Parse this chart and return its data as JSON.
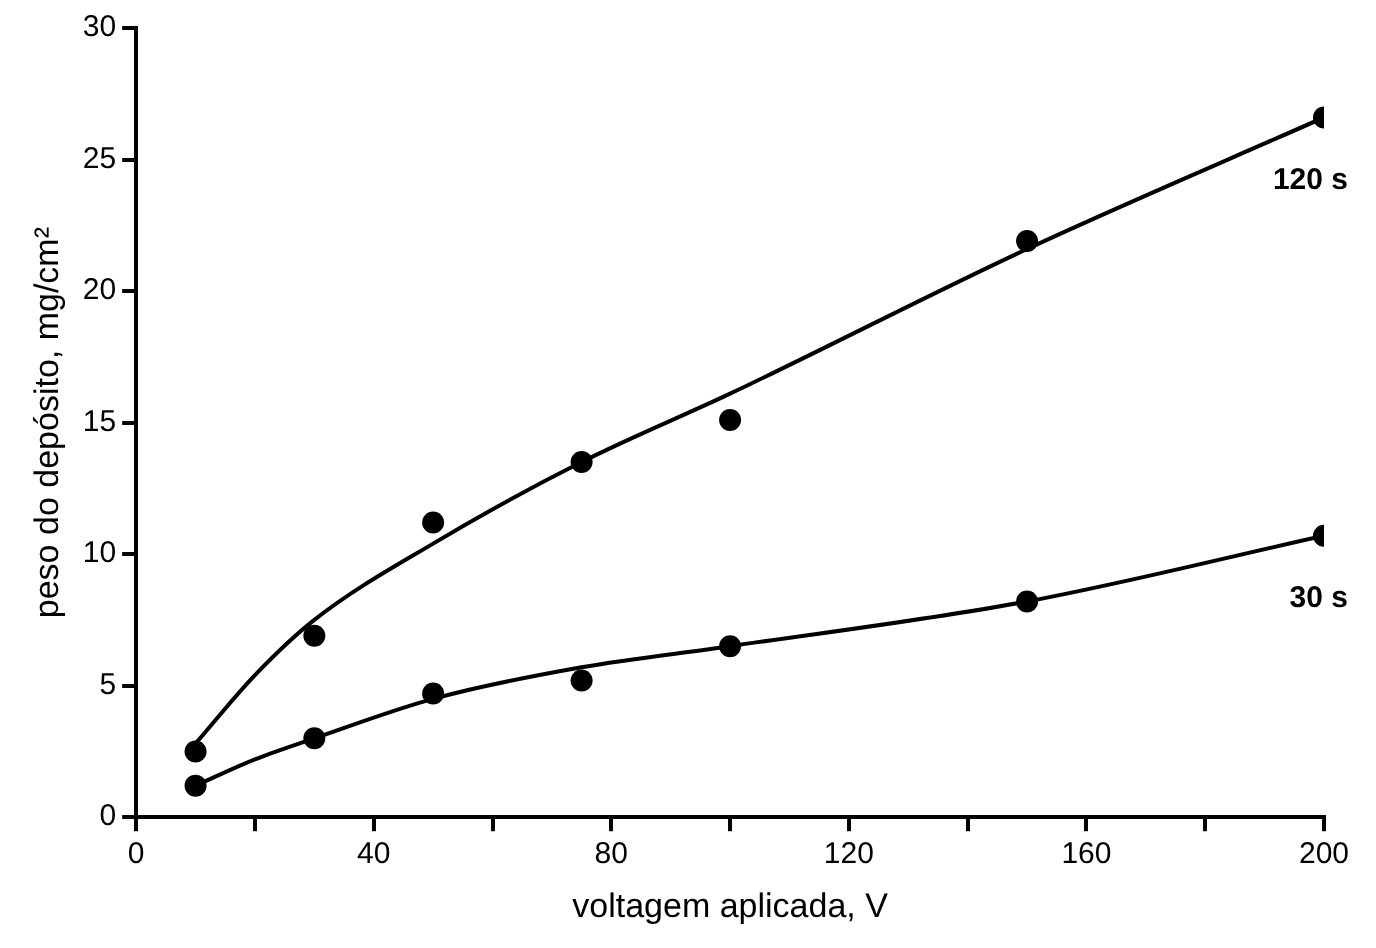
{
  "chart_data": {
    "type": "scatter",
    "xlabel": "voltagem aplicada, V",
    "ylabel": "peso do depósito, mg/cm²",
    "xlim": [
      0,
      200
    ],
    "ylim": [
      0,
      30
    ],
    "xticks": [
      0,
      {
        "value": 20,
        "label": null
      },
      40,
      {
        "value": 60,
        "label": null
      },
      80,
      {
        "value": 100,
        "label": null
      },
      120,
      {
        "value": 140,
        "label": null
      },
      160,
      {
        "value": 180,
        "label": null
      },
      200
    ],
    "yticks": [
      0,
      5,
      10,
      15,
      20,
      25,
      30
    ],
    "series": [
      {
        "name": "120 s",
        "type": "scatter",
        "marker": "circle",
        "color": "#000000",
        "x": [
          10,
          30,
          50,
          75,
          100,
          150,
          200
        ],
        "values": [
          2.5,
          6.9,
          11.2,
          13.5,
          15.1,
          21.9,
          26.6
        ]
      },
      {
        "name": "30 s",
        "type": "scatter",
        "marker": "circle",
        "color": "#000000",
        "x": [
          10,
          30,
          50,
          75,
          100,
          150,
          200
        ],
        "values": [
          1.2,
          3.0,
          4.7,
          5.2,
          6.5,
          8.2,
          10.7
        ]
      },
      {
        "type": "line",
        "marker": "none",
        "color": "#000000",
        "x": [
          10,
          20,
          30,
          50,
          75,
          100,
          150,
          200
        ],
        "values": [
          2.8,
          5.4,
          7.5,
          10.4,
          13.5,
          16.1,
          21.6,
          26.6
        ]
      },
      {
        "type": "line",
        "marker": "none",
        "color": "#000000",
        "x": [
          10,
          20,
          30,
          50,
          75,
          100,
          150,
          200
        ],
        "values": [
          1.2,
          2.2,
          3.0,
          4.5,
          5.7,
          6.5,
          8.2,
          10.7
        ]
      }
    ]
  }
}
